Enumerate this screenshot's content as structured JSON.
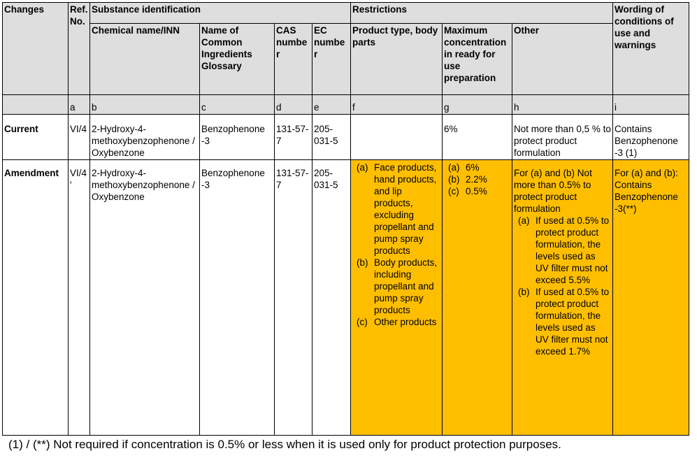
{
  "headers": {
    "changes": "Changes",
    "ref_no": "Ref. No.",
    "substance_identification": "Substance identification",
    "chemical_name": "Chemical name/INN",
    "common_name": "Name of Common Ingredients Glossary",
    "cas": "CAS numbe r",
    "ec": "EC numbe r",
    "restrictions": "Restrictions",
    "product_type": "Product type, body parts",
    "max_conc": "Maximum concentration in ready for use preparation",
    "other": "Other",
    "wording": "Wording of conditions of use and warnings"
  },
  "letters": [
    "a",
    "b",
    "c",
    "d",
    "e",
    "f",
    "g",
    "h",
    "i"
  ],
  "rows": {
    "current": {
      "label": "Current",
      "ref": "VI/4",
      "chemical": "2-Hydroxy-4-methoxybenzophenone / Oxybenzone",
      "common": "Benzophenone -3",
      "cas": "131-57-7",
      "ec": "205-031-5",
      "product_type": "",
      "max_conc": "6%",
      "other": "Not more than 0,5 % to protect product formulation",
      "wording": "Contains Benzophenone -3 (1)"
    },
    "amendment": {
      "label": "Amendment",
      "ref": "VI/4 '",
      "chemical": "2-Hydroxy-4-methoxybenzophenone / Oxybenzone",
      "common": "Benzophenone -3",
      "cas": "131-57-7",
      "ec": "205-031-5",
      "product_types": [
        {
          "marker": "(a)",
          "text": "Face products, hand products, and lip products, excluding propellant and pump spray products"
        },
        {
          "marker": "(b)",
          "text": "Body products, including propellant and pump spray products"
        },
        {
          "marker": "(c)",
          "text": "Other products"
        }
      ],
      "max_concs": [
        {
          "marker": "(a)",
          "text": "6%"
        },
        {
          "marker": "(b)",
          "text": "2.2%"
        },
        {
          "marker": "(c)",
          "text": "0.5%"
        }
      ],
      "other_intro": "For (a) and (b) Not more than 0.5% to protect product formulation",
      "other_items": [
        {
          "marker": "(a)",
          "text": "If used at 0.5% to protect product formulation, the levels used as UV filter must not exceed 5.5%"
        },
        {
          "marker": "(b)",
          "text": "If used at 0.5% to protect product formulation, the levels used as UV filter must not exceed 1.7%"
        }
      ],
      "wording": "For (a) and (b): Contains Benzophenone -3(**)"
    }
  },
  "footnote": "(1)  / (**) Not required if concentration is 0.5% or less when it is used only for product protection purposes.",
  "colors": {
    "header_bg": "#dedede",
    "highlight": "#ffbf00"
  }
}
